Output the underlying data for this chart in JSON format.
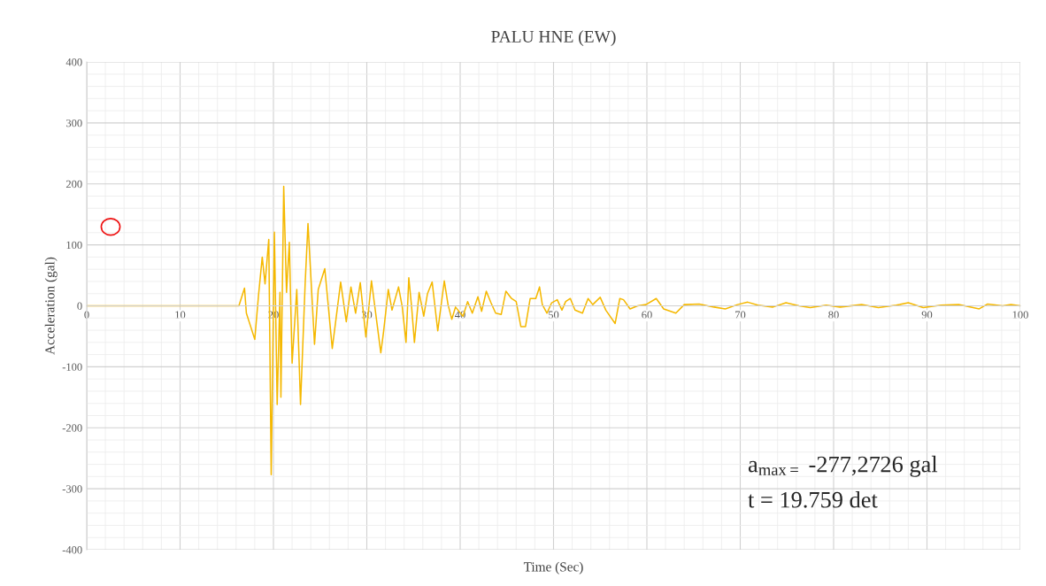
{
  "chart_data": {
    "type": "line",
    "title": "PALU HNE (EW)",
    "xlabel": "Time (Sec)",
    "ylabel": "Acceleration (gal)",
    "annotations": [
      "a$_{max=}$ -277,2726 gal",
      "t = 19.759 det"
    ],
    "xlim": [
      0,
      100
    ],
    "xticks": [
      0,
      10,
      20,
      30,
      40,
      50,
      60,
      70,
      80,
      90,
      100
    ],
    "ylim": [
      -400,
      400
    ],
    "yticks": [
      -400,
      -300,
      -200,
      -100,
      0,
      100,
      200,
      300,
      400
    ],
    "grid": true,
    "legend": false,
    "line_style": "solid",
    "marker": "none",
    "series": [
      {
        "color": "#f5b800",
        "x": [
          0,
          16.3,
          16.9,
          17.1,
          18.0,
          18.4,
          18.8,
          19.1,
          19.5,
          19.76,
          20.1,
          20.4,
          20.7,
          20.8,
          21.1,
          21.4,
          21.7,
          22.0,
          22.5,
          22.9,
          23.4,
          23.7,
          24.4,
          24.8,
          25.5,
          26.3,
          27.2,
          27.8,
          28.3,
          28.8,
          29.3,
          29.9,
          30.5,
          31.5,
          31.8,
          32.3,
          32.7,
          33.4,
          33.8,
          34.2,
          34.5,
          34.8,
          35.1,
          35.6,
          36.1,
          36.5,
          37.0,
          37.6,
          38.3,
          38.7,
          39.1,
          39.5,
          40.3,
          40.8,
          41.3,
          41.9,
          42.3,
          42.8,
          43.3,
          43.8,
          44.4,
          44.9,
          45.5,
          46.0,
          46.5,
          47.0,
          47.5,
          48.1,
          48.5,
          48.8,
          49.3,
          49.8,
          50.4,
          50.9,
          51.3,
          51.8,
          52.3,
          53.1,
          53.7,
          54.2,
          55.0,
          55.6,
          56.6,
          57.1,
          57.5,
          58.2,
          59.0,
          59.9,
          61.0,
          61.8,
          63.1,
          64.0,
          65.6,
          67.2,
          68.4,
          69.7,
          70.8,
          71.9,
          73.5,
          74.9,
          76.3,
          77.5,
          79.2,
          80.7,
          83.0,
          84.8,
          86.7,
          88.0,
          89.6,
          91.5,
          93.4,
          95.6,
          96.5,
          98.1,
          99.0,
          100
        ],
        "values": [
          0,
          0,
          29,
          -12,
          -55,
          17,
          80,
          36,
          109,
          -277,
          121,
          -162,
          22,
          -150,
          196,
          22,
          104,
          -94,
          27,
          -162,
          38,
          135,
          -63,
          27,
          61,
          -70,
          39,
          -26,
          31,
          -12,
          38,
          -51,
          41,
          -77,
          -42,
          27,
          -7,
          31,
          -2,
          -60,
          46,
          -2,
          -60,
          22,
          -17,
          20,
          39,
          -41,
          41,
          2,
          -22,
          -2,
          -17,
          7,
          -12,
          15,
          -9,
          24,
          5,
          -12,
          -14,
          24,
          12,
          7,
          -34,
          -34,
          12,
          12,
          31,
          2,
          -12,
          5,
          10,
          -7,
          7,
          12,
          -7,
          -12,
          12,
          2,
          14,
          -7,
          -29,
          12,
          10,
          -5,
          0,
          2,
          12,
          -5,
          -12,
          2,
          3,
          -2,
          -5,
          2,
          6,
          1,
          -2,
          5,
          0,
          -3,
          1,
          -2,
          2,
          -3,
          1,
          5,
          -3,
          1,
          2,
          -5,
          3,
          0,
          2,
          0
        ]
      }
    ]
  }
}
